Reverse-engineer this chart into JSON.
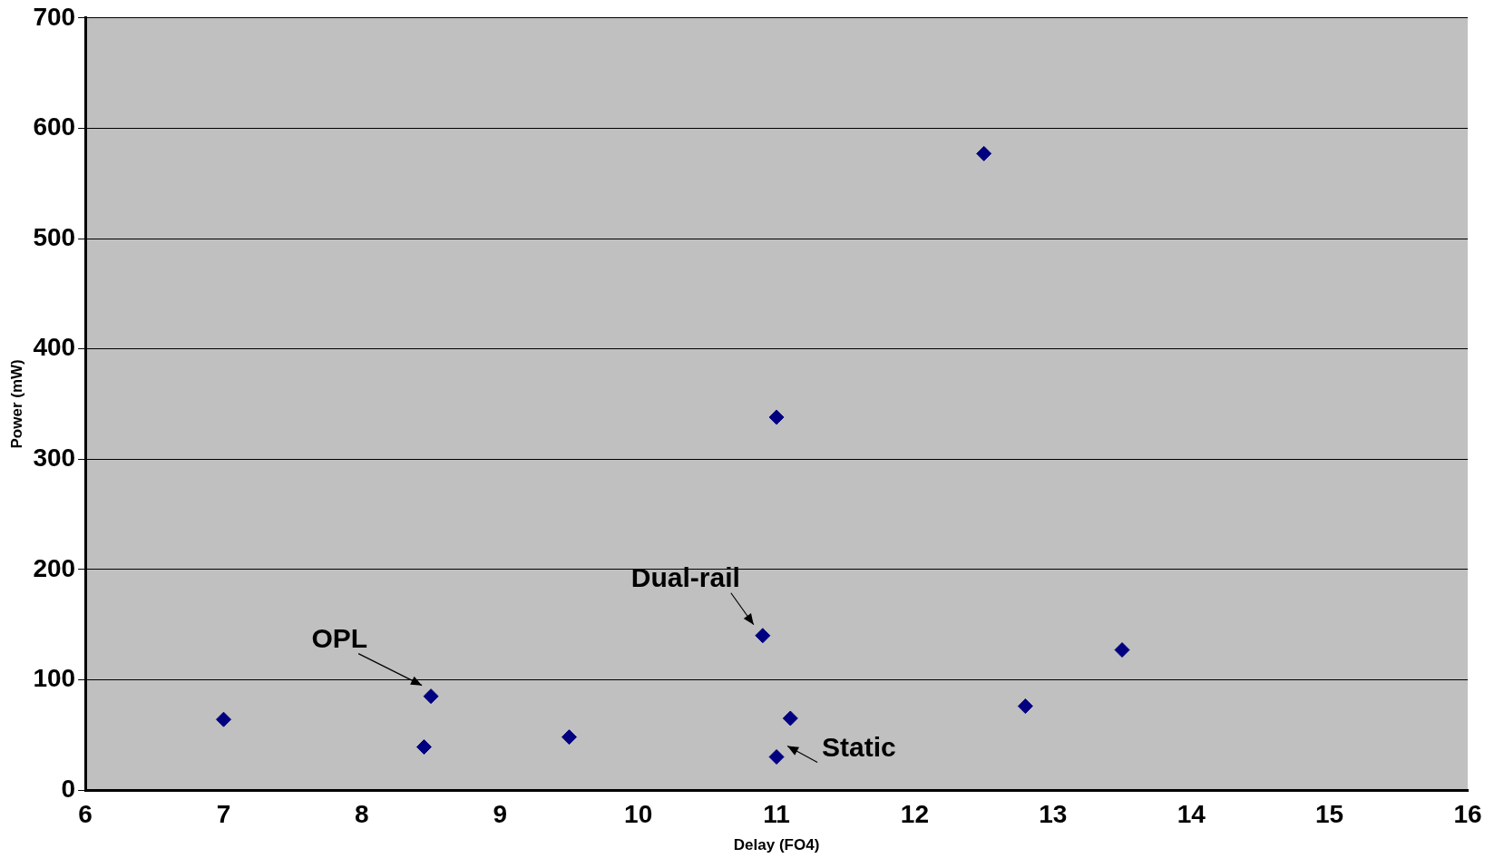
{
  "chart_data": {
    "type": "scatter",
    "xlabel": "Delay (FO4)",
    "ylabel": "Power (mW)",
    "x": [
      7,
      8.5,
      8.45,
      9.5,
      10.9,
      11,
      11.1,
      11,
      12.5,
      12.8,
      13.5
    ],
    "values": [
      64,
      85,
      39,
      48,
      140,
      338,
      65,
      30,
      577,
      76,
      127
    ],
    "color": "#000080",
    "marker": "diamond",
    "xlim": [
      6,
      16
    ],
    "xticks": [
      6,
      7,
      8,
      9,
      10,
      11,
      12,
      13,
      14,
      15,
      16
    ],
    "ylim": [
      0,
      700
    ],
    "yticks": [
      0,
      100,
      200,
      300,
      400,
      500,
      600,
      700
    ],
    "grid": "y",
    "legend": false,
    "annotations": [
      {
        "text": "OPL",
        "x": 8.5,
        "y": 85
      },
      {
        "text": "Dual-rail",
        "x": 10.9,
        "y": 140
      },
      {
        "text": "Static",
        "x": 11,
        "y": 30
      }
    ]
  }
}
